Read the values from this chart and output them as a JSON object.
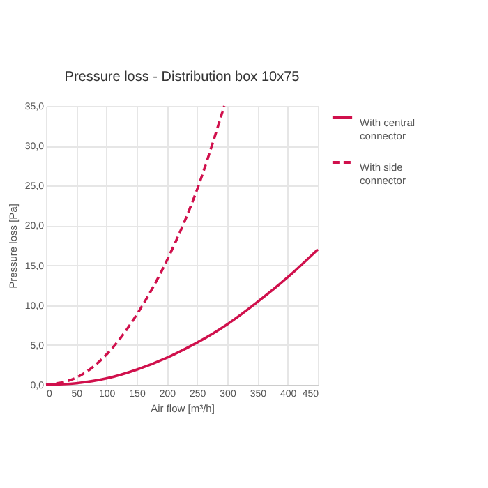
{
  "chart_data": {
    "type": "line",
    "title": "Pressure loss - Distribution box 10x75",
    "xlabel": "Air flow [m³/h]",
    "ylabel": "Pressure loss [Pa]",
    "series": [
      {
        "name": "With central connector",
        "color": "#d0104c",
        "line_style": "solid",
        "x": [
          0,
          50,
          100,
          150,
          200,
          250,
          300,
          350,
          400,
          450
        ],
        "values": [
          0,
          0.2,
          0.8,
          1.9,
          3.4,
          5.3,
          7.6,
          10.4,
          13.5,
          17.0
        ]
      },
      {
        "name": "With side connector",
        "color": "#d0104c",
        "line_style": "dashed",
        "x": [
          0,
          50,
          100,
          150,
          200,
          250,
          295
        ],
        "values": [
          0,
          0.9,
          3.8,
          8.8,
          15.6,
          24.5,
          35.0
        ]
      }
    ],
    "xlim": [
      0,
      450
    ],
    "xticks": [
      0,
      50,
      100,
      150,
      200,
      250,
      300,
      350,
      400,
      450
    ],
    "ylim": [
      0,
      35
    ],
    "yticks": [
      {
        "value": 0,
        "label": "0,0"
      },
      {
        "value": 5,
        "label": "5,0"
      },
      {
        "value": 10,
        "label": "10,0"
      },
      {
        "value": 15,
        "label": "15,0"
      },
      {
        "value": 20,
        "label": "20,0"
      },
      {
        "value": 25,
        "label": "25,0"
      },
      {
        "value": 30,
        "label": "30,0"
      },
      {
        "value": 35,
        "label": "35,0"
      }
    ],
    "grid": true,
    "legend": "right",
    "marker": "none"
  }
}
